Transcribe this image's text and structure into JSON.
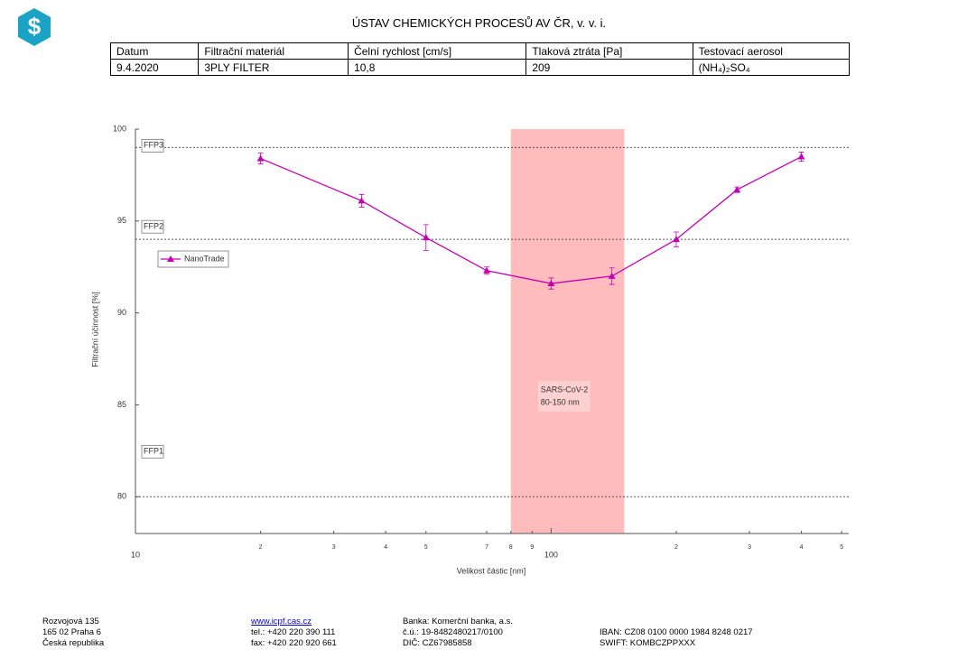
{
  "header": {
    "title": "ÚSTAV CHEMICKÝCH PROCESŮ AV ČR, v. v. i."
  },
  "table": {
    "columns": [
      "Datum",
      "Filtrační materiál",
      "Čelní rychlost [cm/s]",
      "Tlaková ztráta [Pa]",
      "Testovací aerosol"
    ],
    "rows": [
      [
        "9.4.2020",
        "3PLY FILTER",
        "10,8",
        "209",
        "(NH₄)₂SO₄"
      ]
    ]
  },
  "chart_data": {
    "type": "line",
    "x_label": "Velikost částic [nm]",
    "y_label": "Filtrační účinnost [%]",
    "x": [
      20,
      35,
      50,
      70,
      100,
      140,
      200,
      280,
      400
    ],
    "series": [
      {
        "name": "NanoTrade",
        "color": "#c800b4",
        "values": [
          98.4,
          96.1,
          94.1,
          92.3,
          91.6,
          92.0,
          94.0,
          96.7,
          98.5
        ],
        "errors": [
          0.3,
          0.35,
          0.7,
          0.2,
          0.3,
          0.45,
          0.4,
          0.15,
          0.25
        ]
      }
    ],
    "xlog": true,
    "xlim": [
      10,
      520
    ],
    "xticks": [
      10,
      {
        "value": 20,
        "label": "2"
      },
      {
        "value": 30,
        "label": "3"
      },
      {
        "value": 40,
        "label": "4"
      },
      {
        "value": 50,
        "label": "5"
      },
      {
        "value": 70,
        "label": "7"
      },
      {
        "value": 80,
        "label": "8"
      },
      {
        "value": 90,
        "label": "9"
      },
      100,
      {
        "value": 200,
        "label": "2"
      },
      {
        "value": 300,
        "label": "3"
      },
      {
        "value": 400,
        "label": "4"
      },
      {
        "value": 500,
        "label": "5"
      }
    ],
    "ylim": [
      78,
      100
    ],
    "yticks": [
      80,
      85,
      90,
      95,
      100
    ],
    "reference_lines": [
      {
        "label": "FFP3",
        "value": 99
      },
      {
        "label": "FFP2",
        "value": 94
      },
      {
        "label": "FFP1",
        "value": 80
      }
    ],
    "band": {
      "x": [
        80,
        150
      ],
      "color": "#ffbcbc",
      "labels": [
        "SARS-CoV-2",
        "80-150 nm"
      ]
    },
    "legend": "upper left"
  },
  "footer": {
    "address": [
      "Rozvojová 135",
      "165 02 Praha 6",
      "Česká republika"
    ],
    "contact": [
      "www.icpf.cas.cz",
      "tel.: +420 220 390 111",
      "fax: +420 220 920 661"
    ],
    "bank": [
      "Banka: Komerční banka, a.s.",
      "č.ú.: 19-8482480217/0100",
      "DIČ: CZ67985858"
    ],
    "iban": [
      "IBAN: CZ08 0100 0000 1984 8248 0217",
      "SWIFT: KOMBCZPPXXX"
    ]
  }
}
